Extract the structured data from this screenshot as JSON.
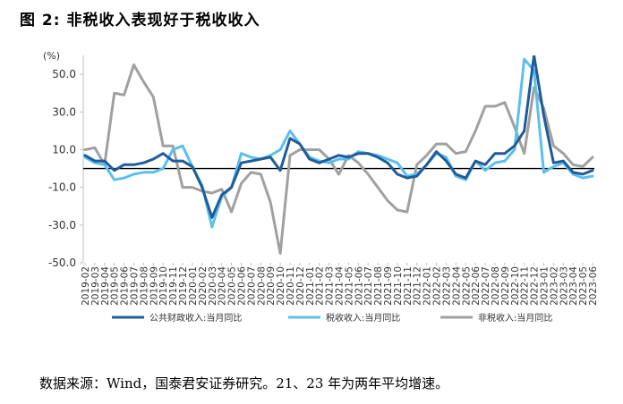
{
  "figure": {
    "title": "图 2: 非税收入表现好于税收收入",
    "source": "数据来源：Wind，国泰君安证券研究。21、23 年为两年平均增速。"
  },
  "chart_data": {
    "type": "line",
    "unit_label": "(%)",
    "ylim": [
      -50,
      60
    ],
    "yticks": [
      50,
      30,
      10,
      -10,
      -30,
      -50
    ],
    "ytick_labels": [
      "50.0",
      "30.0",
      "10.0",
      "-10.0",
      "-30.0",
      "-50.0"
    ],
    "x": [
      "2019-02",
      "2019-03",
      "2019-04",
      "2019-05",
      "2019-06",
      "2019-07",
      "2019-08",
      "2019-09",
      "2019-10",
      "2019-11",
      "2019-12",
      "2020-01",
      "2020-02",
      "2020-03",
      "2020-04",
      "2020-05",
      "2020-06",
      "2020-07",
      "2020-08",
      "2020-09",
      "2020-10",
      "2020-11",
      "2020-12",
      "2021-01",
      "2021-02",
      "2021-03",
      "2021-04",
      "2021-05",
      "2021-06",
      "2021-07",
      "2021-08",
      "2021-09",
      "2021-10",
      "2021-11",
      "2021-12",
      "2022-01",
      "2022-02",
      "2022-03",
      "2022-04",
      "2022-05",
      "2022-06",
      "2022-07",
      "2022-08",
      "2022-09",
      "2022-10",
      "2022-11",
      "2022-12",
      "2023-01",
      "2023-02",
      "2023-03",
      "2023-04",
      "2023-05",
      "2023-06"
    ],
    "x_tick_labels": [
      "2019-02",
      "2019-03",
      "2019-04",
      "2019-05",
      "2019-06",
      "2019-07",
      "2019-08",
      "2019-09",
      "2019-10",
      "2019-11",
      "2019-12",
      "2020-01",
      "2020-02",
      "2020-03",
      "2020-04",
      "2020-05",
      "2020-06",
      "2020-07",
      "2020-08",
      "2020-09",
      "2020-10",
      "2020-11",
      "2020-12",
      "2021-01",
      "2021-02",
      "2021-03",
      "2021-04",
      "2021-05",
      "2021-06",
      "2021-07",
      "2021-08",
      "2021-09",
      "2021-10",
      "2021-11",
      "2021-12",
      "2022-01",
      "2022-02",
      "2022-03",
      "2022-04",
      "2022-05",
      "2022-06",
      "2022-07",
      "2022-08",
      "2022-09",
      "2022-10",
      "2022-11",
      "2022-12",
      "2023-01",
      "2023-02",
      "2023-03",
      "2023-04",
      "2023-05",
      "2023-06"
    ],
    "series": [
      {
        "name": "公共财政收入:当月同比",
        "color": "#1f5c99",
        "width": 3,
        "values": [
          7,
          4,
          4,
          -1,
          2,
          2,
          3,
          5,
          8,
          4,
          4,
          1,
          -10,
          -26,
          -14,
          -10,
          3,
          4,
          5,
          6,
          -1,
          16,
          13,
          5,
          3,
          5,
          7,
          6,
          8,
          8,
          6,
          3,
          -3,
          -5,
          -4,
          2,
          9,
          4,
          -3,
          -5,
          4,
          2,
          8,
          8,
          12,
          20,
          60,
          28,
          3,
          4,
          -2,
          -3,
          -1
        ]
      },
      {
        "name": "税收收入:当月同比",
        "color": "#5bc0eb",
        "width": 3,
        "values": [
          6,
          3,
          2,
          -6,
          -5,
          -3,
          -2,
          -2,
          0,
          10,
          12,
          1,
          -9,
          -31,
          -15,
          -10,
          8,
          6,
          5,
          7,
          10,
          20,
          13,
          6,
          4,
          3,
          5,
          5,
          9,
          8,
          7,
          5,
          3,
          -4,
          -3,
          2,
          8,
          6,
          -4,
          -6,
          4,
          -1,
          3,
          4,
          10,
          58,
          52,
          -2,
          1,
          3,
          -3,
          -5,
          -4
        ]
      },
      {
        "name": "非税收入:当月同比",
        "color": "#a0a0a0",
        "width": 3,
        "values": [
          10,
          11,
          2,
          40,
          39,
          55,
          46,
          38,
          12,
          12,
          -10,
          -10,
          -12,
          -13,
          -11,
          -23,
          -8,
          -2,
          -3,
          -18,
          -45,
          7,
          10,
          10,
          10,
          5,
          -3,
          7,
          3,
          -3,
          -10,
          -17,
          -22,
          -23,
          2,
          7,
          13,
          13,
          8,
          9,
          20,
          33,
          33,
          35,
          22,
          8,
          43,
          32,
          12,
          8,
          2,
          1,
          6
        ]
      }
    ],
    "grid": false,
    "legend": "bottom"
  }
}
